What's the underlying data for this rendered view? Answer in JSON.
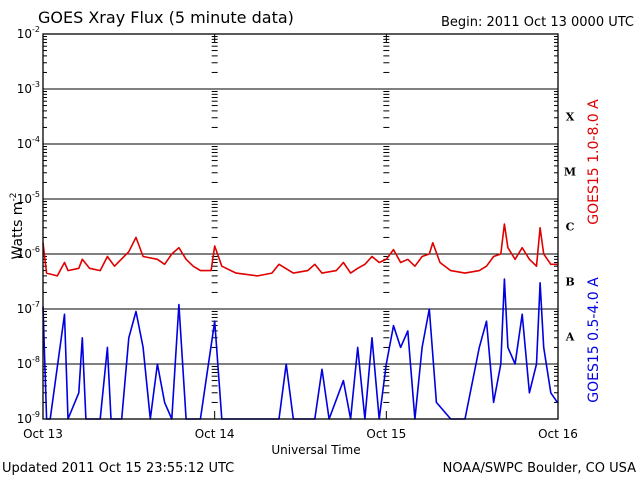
{
  "header": {
    "title": "GOES Xray Flux (5 minute data)",
    "begin": "Begin:  2011 Oct 13 0000 UTC"
  },
  "footer": {
    "updated": "Updated 2011 Oct 15 23:55:12 UTC",
    "credit": "NOAA/SWPC Boulder, CO USA"
  },
  "chart_data": {
    "type": "line",
    "title": "GOES Xray Flux (5 minute data)",
    "xlabel": "Universal Time",
    "ylabel": "Watts m",
    "ylabel_exponent": "-2",
    "yscale": "log",
    "ylim": [
      1e-09,
      0.01
    ],
    "xlim": [
      "2011-10-13T00:00Z",
      "2011-10-16T00:00Z"
    ],
    "x_ticks": [
      "Oct 13",
      "Oct 14",
      "Oct 15",
      "Oct 16"
    ],
    "y_ticks": [
      {
        "base": "10",
        "exp": "-9"
      },
      {
        "base": "10",
        "exp": "-8"
      },
      {
        "base": "10",
        "exp": "-7"
      },
      {
        "base": "10",
        "exp": "-6"
      },
      {
        "base": "10",
        "exp": "-5"
      },
      {
        "base": "10",
        "exp": "-4"
      },
      {
        "base": "10",
        "exp": "-3"
      },
      {
        "base": "10",
        "exp": "-2"
      }
    ],
    "flare_classes": [
      "A",
      "B",
      "C",
      "M",
      "X"
    ],
    "grid": "horizontal",
    "series": [
      {
        "name": "GOES15 1.0-8.0 A",
        "color": "#e00000",
        "points": [
          [
            "2011-10-13T00:00Z",
            1.6e-06
          ],
          [
            "2011-10-13T00:30Z",
            4.5e-07
          ],
          [
            "2011-10-13T02:00Z",
            4e-07
          ],
          [
            "2011-10-13T03:00Z",
            7e-07
          ],
          [
            "2011-10-13T03:30Z",
            5e-07
          ],
          [
            "2011-10-13T05:00Z",
            5.5e-07
          ],
          [
            "2011-10-13T05:30Z",
            8e-07
          ],
          [
            "2011-10-13T06:30Z",
            5.5e-07
          ],
          [
            "2011-10-13T08:00Z",
            5e-07
          ],
          [
            "2011-10-13T09:00Z",
            9e-07
          ],
          [
            "2011-10-13T10:00Z",
            6e-07
          ],
          [
            "2011-10-13T12:00Z",
            1.1e-06
          ],
          [
            "2011-10-13T13:00Z",
            2e-06
          ],
          [
            "2011-10-13T14:00Z",
            9e-07
          ],
          [
            "2011-10-13T16:00Z",
            8e-07
          ],
          [
            "2011-10-13T17:00Z",
            6.5e-07
          ],
          [
            "2011-10-13T18:00Z",
            1e-06
          ],
          [
            "2011-10-13T19:00Z",
            1.3e-06
          ],
          [
            "2011-10-13T20:00Z",
            8e-07
          ],
          [
            "2011-10-13T21:00Z",
            6e-07
          ],
          [
            "2011-10-13T22:00Z",
            5e-07
          ],
          [
            "2011-10-13T23:30Z",
            5e-07
          ],
          [
            "2011-10-14T00:00Z",
            1.4e-06
          ],
          [
            "2011-10-14T01:00Z",
            6e-07
          ],
          [
            "2011-10-14T03:00Z",
            4.5e-07
          ],
          [
            "2011-10-14T06:00Z",
            4e-07
          ],
          [
            "2011-10-14T08:00Z",
            4.5e-07
          ],
          [
            "2011-10-14T09:00Z",
            6.5e-07
          ],
          [
            "2011-10-14T11:00Z",
            4.5e-07
          ],
          [
            "2011-10-14T13:00Z",
            5e-07
          ],
          [
            "2011-10-14T14:00Z",
            6.5e-07
          ],
          [
            "2011-10-14T15:00Z",
            4.5e-07
          ],
          [
            "2011-10-14T17:00Z",
            5e-07
          ],
          [
            "2011-10-14T18:00Z",
            7e-07
          ],
          [
            "2011-10-14T19:00Z",
            4.5e-07
          ],
          [
            "2011-10-14T20:00Z",
            5.5e-07
          ],
          [
            "2011-10-14T21:00Z",
            6.5e-07
          ],
          [
            "2011-10-14T22:00Z",
            9e-07
          ],
          [
            "2011-10-14T23:00Z",
            7e-07
          ],
          [
            "2011-10-15T00:00Z",
            8e-07
          ],
          [
            "2011-10-15T01:00Z",
            1.2e-06
          ],
          [
            "2011-10-15T02:00Z",
            7e-07
          ],
          [
            "2011-10-15T03:00Z",
            8e-07
          ],
          [
            "2011-10-15T04:00Z",
            6e-07
          ],
          [
            "2011-10-15T05:00Z",
            9e-07
          ],
          [
            "2011-10-15T06:00Z",
            1e-06
          ],
          [
            "2011-10-15T06:30Z",
            1.6e-06
          ],
          [
            "2011-10-15T07:30Z",
            7e-07
          ],
          [
            "2011-10-15T09:00Z",
            5e-07
          ],
          [
            "2011-10-15T11:00Z",
            4.5e-07
          ],
          [
            "2011-10-15T13:00Z",
            5e-07
          ],
          [
            "2011-10-15T14:00Z",
            6e-07
          ],
          [
            "2011-10-15T15:00Z",
            9e-07
          ],
          [
            "2011-10-15T16:00Z",
            1e-06
          ],
          [
            "2011-10-15T16:30Z",
            3.5e-06
          ],
          [
            "2011-10-15T17:00Z",
            1.3e-06
          ],
          [
            "2011-10-15T18:00Z",
            8e-07
          ],
          [
            "2011-10-15T19:00Z",
            1.3e-06
          ],
          [
            "2011-10-15T20:00Z",
            8e-07
          ],
          [
            "2011-10-15T21:00Z",
            6e-07
          ],
          [
            "2011-10-15T21:30Z",
            3e-06
          ],
          [
            "2011-10-15T22:00Z",
            1e-06
          ],
          [
            "2011-10-15T23:00Z",
            6.5e-07
          ],
          [
            "2011-10-15T23:55Z",
            6.5e-07
          ]
        ]
      },
      {
        "name": "GOES15 0.5-4.0 A",
        "color": "#0000e0",
        "points": [
          [
            "2011-10-13T00:00Z",
            1.1e-07
          ],
          [
            "2011-10-13T00:30Z",
            1e-09
          ],
          [
            "2011-10-13T01:00Z",
            1e-09
          ],
          [
            "2011-10-13T03:00Z",
            8e-08
          ],
          [
            "2011-10-13T03:30Z",
            1e-09
          ],
          [
            "2011-10-13T05:00Z",
            3e-09
          ],
          [
            "2011-10-13T05:30Z",
            3e-08
          ],
          [
            "2011-10-13T06:00Z",
            1e-09
          ],
          [
            "2011-10-13T08:00Z",
            1e-09
          ],
          [
            "2011-10-13T09:00Z",
            2e-08
          ],
          [
            "2011-10-13T09:30Z",
            1e-09
          ],
          [
            "2011-10-13T11:00Z",
            1e-09
          ],
          [
            "2011-10-13T12:00Z",
            3e-08
          ],
          [
            "2011-10-13T13:00Z",
            9e-08
          ],
          [
            "2011-10-13T14:00Z",
            2e-08
          ],
          [
            "2011-10-13T15:00Z",
            1e-09
          ],
          [
            "2011-10-13T16:00Z",
            1e-08
          ],
          [
            "2011-10-13T17:00Z",
            2e-09
          ],
          [
            "2011-10-13T18:00Z",
            1e-09
          ],
          [
            "2011-10-13T19:00Z",
            1.2e-07
          ],
          [
            "2011-10-13T20:00Z",
            1e-09
          ],
          [
            "2011-10-13T22:00Z",
            1e-09
          ],
          [
            "2011-10-14T00:00Z",
            6e-08
          ],
          [
            "2011-10-14T01:00Z",
            1e-09
          ],
          [
            "2011-10-14T03:00Z",
            1e-09
          ],
          [
            "2011-10-14T06:00Z",
            1e-09
          ],
          [
            "2011-10-14T09:00Z",
            1e-09
          ],
          [
            "2011-10-14T10:00Z",
            1e-08
          ],
          [
            "2011-10-14T11:00Z",
            1e-09
          ],
          [
            "2011-10-14T14:00Z",
            1e-09
          ],
          [
            "2011-10-14T15:00Z",
            8e-09
          ],
          [
            "2011-10-14T16:00Z",
            1e-09
          ],
          [
            "2011-10-14T18:00Z",
            5e-09
          ],
          [
            "2011-10-14T19:00Z",
            1e-09
          ],
          [
            "2011-10-14T20:00Z",
            2e-08
          ],
          [
            "2011-10-14T21:00Z",
            1e-09
          ],
          [
            "2011-10-14T22:00Z",
            3e-08
          ],
          [
            "2011-10-14T23:00Z",
            1e-09
          ],
          [
            "2011-10-15T00:00Z",
            1e-08
          ],
          [
            "2011-10-15T01:00Z",
            5e-08
          ],
          [
            "2011-10-15T02:00Z",
            2e-08
          ],
          [
            "2011-10-15T03:00Z",
            4e-08
          ],
          [
            "2011-10-15T04:00Z",
            1e-09
          ],
          [
            "2011-10-15T05:00Z",
            2e-08
          ],
          [
            "2011-10-15T06:00Z",
            1e-07
          ],
          [
            "2011-10-15T07:00Z",
            2e-09
          ],
          [
            "2011-10-15T09:00Z",
            1e-09
          ],
          [
            "2011-10-15T11:00Z",
            1e-09
          ],
          [
            "2011-10-15T13:00Z",
            2e-08
          ],
          [
            "2011-10-15T14:00Z",
            6e-08
          ],
          [
            "2011-10-15T15:00Z",
            2e-09
          ],
          [
            "2011-10-15T16:00Z",
            1e-08
          ],
          [
            "2011-10-15T16:30Z",
            3.5e-07
          ],
          [
            "2011-10-15T17:00Z",
            2e-08
          ],
          [
            "2011-10-15T18:00Z",
            1e-08
          ],
          [
            "2011-10-15T19:00Z",
            8e-08
          ],
          [
            "2011-10-15T20:00Z",
            3e-09
          ],
          [
            "2011-10-15T21:00Z",
            1e-08
          ],
          [
            "2011-10-15T21:30Z",
            3e-07
          ],
          [
            "2011-10-15T22:00Z",
            2e-08
          ],
          [
            "2011-10-15T23:00Z",
            3e-09
          ],
          [
            "2011-10-15T23:55Z",
            2e-09
          ]
        ]
      }
    ]
  }
}
